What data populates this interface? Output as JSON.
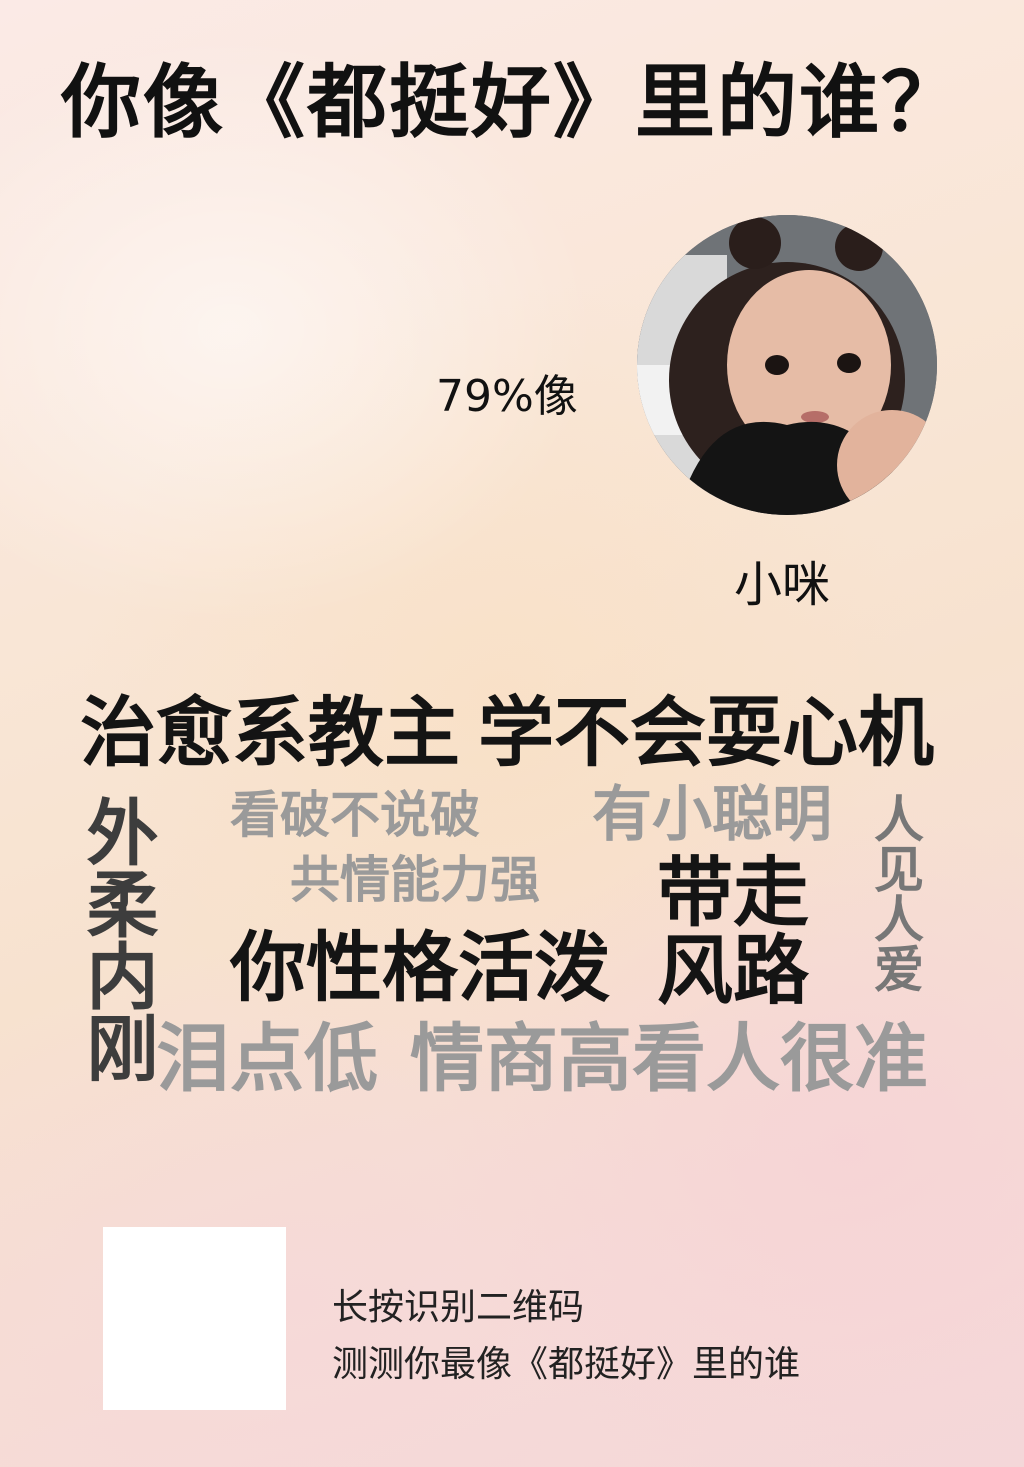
{
  "title": "你像《都挺好》里的谁？",
  "result": {
    "percent": "79%像",
    "name": "小咪",
    "avatar_icon": "child-portrait-image"
  },
  "tags": {
    "t1": "治愈系教主",
    "t2": "学不会耍心机",
    "t3": "外柔内刚",
    "t4": "看破不说破",
    "t5": "有小聪明",
    "t6": "人见人爱",
    "t7": "共情能力强",
    "t8": "带走",
    "t9": "风路",
    "t10": "你性格活泼",
    "t11": "泪点低",
    "t12": "情商高看人很准"
  },
  "footer": {
    "line1": "长按识别二维码",
    "line2": "测测你最像《都挺好》里的谁"
  }
}
